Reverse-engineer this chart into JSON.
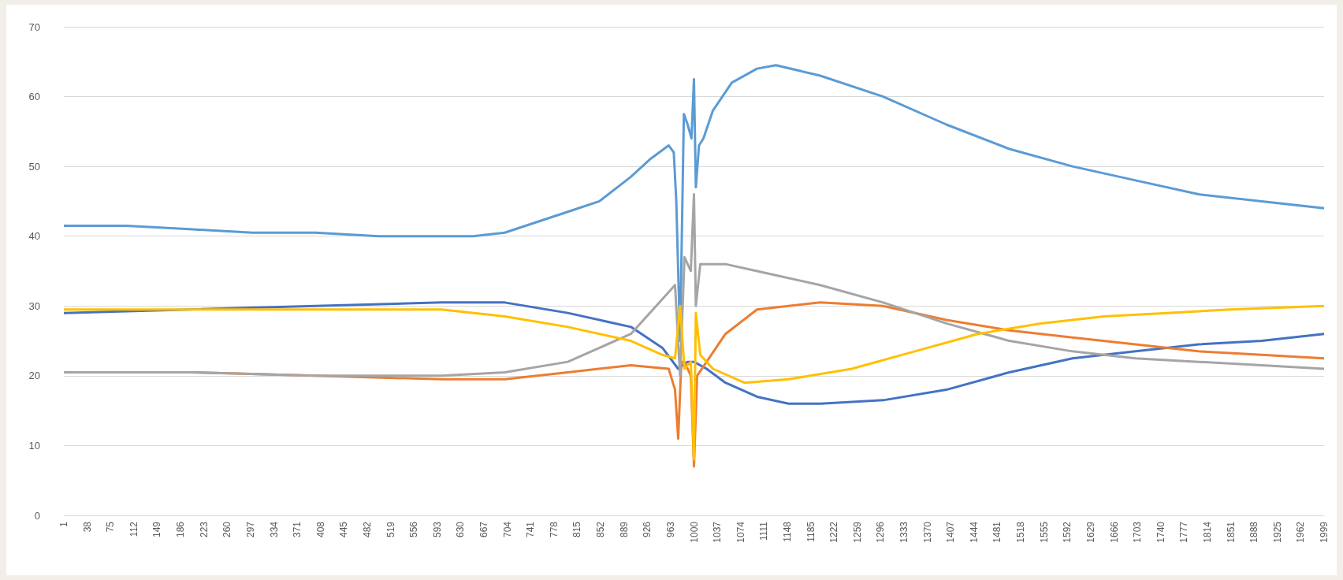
{
  "chart_data": {
    "type": "line",
    "xlim": [
      1,
      1999
    ],
    "xticks": [
      1,
      38,
      75,
      112,
      149,
      186,
      223,
      260,
      297,
      334,
      371,
      408,
      445,
      482,
      519,
      556,
      593,
      630,
      667,
      704,
      741,
      778,
      815,
      852,
      889,
      926,
      963,
      1000,
      1037,
      1074,
      1111,
      1148,
      1185,
      1222,
      1259,
      1296,
      1333,
      1370,
      1407,
      1444,
      1481,
      1518,
      1555,
      1592,
      1629,
      1666,
      1703,
      1740,
      1777,
      1814,
      1851,
      1888,
      1925,
      1962,
      1999
    ],
    "ylim": [
      0,
      70
    ],
    "yticks": [
      0,
      10,
      20,
      30,
      40,
      50,
      60,
      70
    ],
    "grid": "y",
    "marker": "none",
    "line_style": "solid",
    "series": [
      {
        "color": "#5b9bd5",
        "x": [
          1,
          100,
          200,
          300,
          400,
          500,
          550,
          650,
          700,
          750,
          800,
          850,
          900,
          930,
          960,
          968,
          972,
          978,
          984,
          990,
          996,
          1000,
          1003,
          1008,
          1015,
          1030,
          1060,
          1100,
          1130,
          1200,
          1300,
          1400,
          1500,
          1600,
          1700,
          1800,
          1900,
          1999
        ],
        "values": [
          41.5,
          41.5,
          41,
          40.5,
          40.5,
          40,
          40,
          40,
          40.5,
          42,
          43.5,
          45,
          48.5,
          51,
          53,
          52,
          45,
          25,
          57.5,
          56,
          54,
          62.5,
          47,
          53,
          54,
          58,
          62,
          64,
          64.5,
          63,
          60,
          56,
          52.5,
          50,
          48,
          46,
          45,
          44
        ]
      },
      {
        "color": "#4472c4",
        "x": [
          1,
          200,
          400,
          600,
          700,
          800,
          900,
          950,
          975,
          990,
          1000,
          1020,
          1050,
          1100,
          1150,
          1200,
          1300,
          1400,
          1500,
          1600,
          1700,
          1800,
          1900,
          1999
        ],
        "values": [
          29,
          29.5,
          30,
          30.5,
          30.5,
          29,
          27,
          24,
          21,
          22,
          22,
          21,
          19,
          17,
          16,
          16,
          16.5,
          18,
          20.5,
          22.5,
          23.5,
          24.5,
          25,
          26
        ]
      },
      {
        "color": "#ed7d31",
        "x": [
          1,
          200,
          400,
          600,
          700,
          800,
          900,
          960,
          970,
          975,
          980,
          985,
          995,
          1000,
          1005,
          1020,
          1050,
          1100,
          1200,
          1300,
          1400,
          1500,
          1600,
          1700,
          1800,
          1900,
          1999
        ],
        "values": [
          20.5,
          20.5,
          20,
          19.5,
          19.5,
          20.5,
          21.5,
          21,
          18,
          11,
          22,
          22,
          20,
          7,
          20,
          22,
          26,
          29.5,
          30.5,
          30,
          28,
          26.5,
          25.5,
          24.5,
          23.5,
          23,
          22.5
        ]
      },
      {
        "color": "#a5a5a5",
        "x": [
          1,
          200,
          400,
          600,
          700,
          800,
          900,
          950,
          970,
          978,
          985,
          995,
          1000,
          1003,
          1010,
          1050,
          1100,
          1200,
          1300,
          1400,
          1500,
          1600,
          1700,
          1800,
          1900,
          1999
        ],
        "values": [
          20.5,
          20.5,
          20,
          20,
          20.5,
          22,
          26,
          31,
          33,
          20,
          37,
          35,
          46,
          30,
          36,
          36,
          35,
          33,
          30.5,
          27.5,
          25,
          23.5,
          22.5,
          22,
          21.5,
          21
        ]
      },
      {
        "color": "#ffc000",
        "x": [
          1,
          200,
          400,
          600,
          700,
          800,
          900,
          950,
          970,
          978,
          985,
          995,
          1000,
          1003,
          1010,
          1030,
          1080,
          1150,
          1250,
          1350,
          1450,
          1550,
          1650,
          1750,
          1850,
          1999
        ],
        "values": [
          29.5,
          29.5,
          29.5,
          29.5,
          28.5,
          27,
          25,
          23,
          22.5,
          30,
          21,
          22,
          8,
          29,
          23,
          21,
          19,
          19.5,
          21,
          23.5,
          26,
          27.5,
          28.5,
          29,
          29.5,
          30
        ]
      }
    ]
  }
}
